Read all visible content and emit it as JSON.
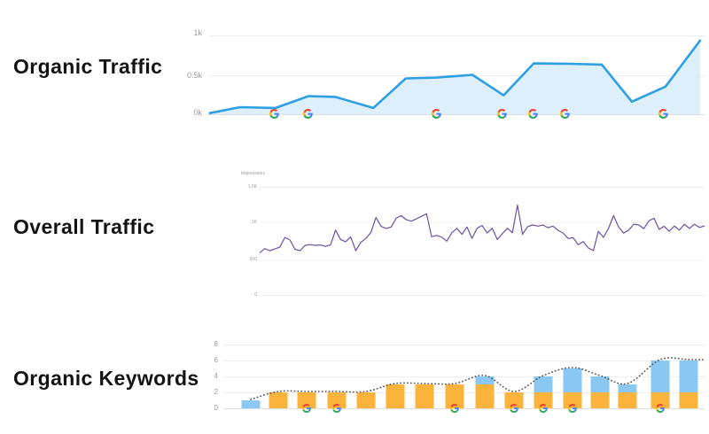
{
  "sections": [
    {
      "title": "Organic Traffic"
    },
    {
      "title": "Overall Traffic"
    },
    {
      "title": "Organic Keywords"
    }
  ],
  "marker_icon": "google-logo",
  "colors": {
    "organic_line": "#2D9FE4",
    "organic_fill": "#D9EDFA",
    "overall_line": "#6B51A3",
    "keyword_yellow": "#FBB33C",
    "keyword_blue": "#8AC7F3",
    "dotted_line": "#55585C",
    "tick_text": "#9B9B9B",
    "title_text": "#141414"
  },
  "chart_data": [
    {
      "type": "area",
      "title": "Organic Traffic",
      "yticks": [
        "1k",
        "0.5k",
        "0k"
      ],
      "ylim": [
        0,
        1000
      ],
      "grid": true,
      "points": [
        {
          "x": 0.005,
          "y": 15
        },
        {
          "x": 0.066,
          "y": 90
        },
        {
          "x": 0.138,
          "y": 80
        },
        {
          "x": 0.205,
          "y": 230
        },
        {
          "x": 0.259,
          "y": 220
        },
        {
          "x": 0.336,
          "y": 80
        },
        {
          "x": 0.402,
          "y": 455
        },
        {
          "x": 0.465,
          "y": 465
        },
        {
          "x": 0.537,
          "y": 500
        },
        {
          "x": 0.6,
          "y": 240
        },
        {
          "x": 0.661,
          "y": 645
        },
        {
          "x": 0.731,
          "y": 640
        },
        {
          "x": 0.799,
          "y": 630
        },
        {
          "x": 0.86,
          "y": 160
        },
        {
          "x": 0.928,
          "y": 350
        },
        {
          "x": 0.998,
          "y": 935
        }
      ],
      "google_markers_x": [
        0.138,
        0.205,
        0.465,
        0.598,
        0.662,
        0.727,
        0.925
      ]
    },
    {
      "type": "line",
      "title": "Overall Traffic",
      "axis_label": "Impressions",
      "yticks": [
        "1.5K",
        "1K",
        "500",
        "0"
      ],
      "ylim": [
        0,
        1500
      ],
      "grid": true,
      "values": [
        590,
        650,
        622,
        645,
        672,
        805,
        770,
        640,
        622,
        695,
        705,
        695,
        700,
        682,
        700,
        905,
        775,
        745,
        812,
        622,
        735,
        790,
        872,
        1078,
        958,
        928,
        948,
        1068,
        1105,
        1048,
        1028,
        1060,
        1095,
        1130,
        815,
        832,
        808,
        752,
        868,
        928,
        848,
        948,
        792,
        930,
        968,
        865,
        930,
        775,
        855,
        930,
        868,
        1250,
        848,
        952,
        975,
        960,
        975,
        938,
        960,
        902,
        865,
        790,
        800,
        705,
        748,
        658,
        622,
        888,
        805,
        928,
        1105,
        948,
        865,
        905,
        985,
        975,
        925,
        1032,
        1068,
        915,
        958,
        888,
        962,
        905,
        985,
        928,
        985,
        942,
        962
      ]
    },
    {
      "type": "bar",
      "title": "Organic Keywords",
      "yticks": [
        "8",
        "6",
        "4",
        "2",
        "0"
      ],
      "ylim": [
        0,
        8
      ],
      "grid": true,
      "stacked": true,
      "series": [
        {
          "name": "yellow",
          "values": [
            0,
            2,
            2,
            2,
            2,
            3,
            3,
            3,
            3,
            2,
            2,
            2,
            2,
            2,
            2,
            2
          ]
        },
        {
          "name": "blue",
          "values": [
            1,
            0,
            0,
            0,
            0,
            0,
            0,
            0,
            1,
            0,
            2,
            3,
            2,
            1,
            4,
            4
          ]
        }
      ],
      "dotted_totals": [
        1,
        2,
        2,
        2,
        2,
        3,
        3,
        3,
        4,
        2,
        4,
        5,
        4,
        3,
        6,
        6
      ],
      "bar_centers": [
        31,
        62,
        94,
        128,
        161,
        194,
        227,
        261,
        295,
        328,
        361,
        394,
        425,
        456,
        493,
        525
      ],
      "google_marker_bars": [
        2,
        3,
        7,
        9,
        10,
        11,
        14
      ]
    }
  ]
}
